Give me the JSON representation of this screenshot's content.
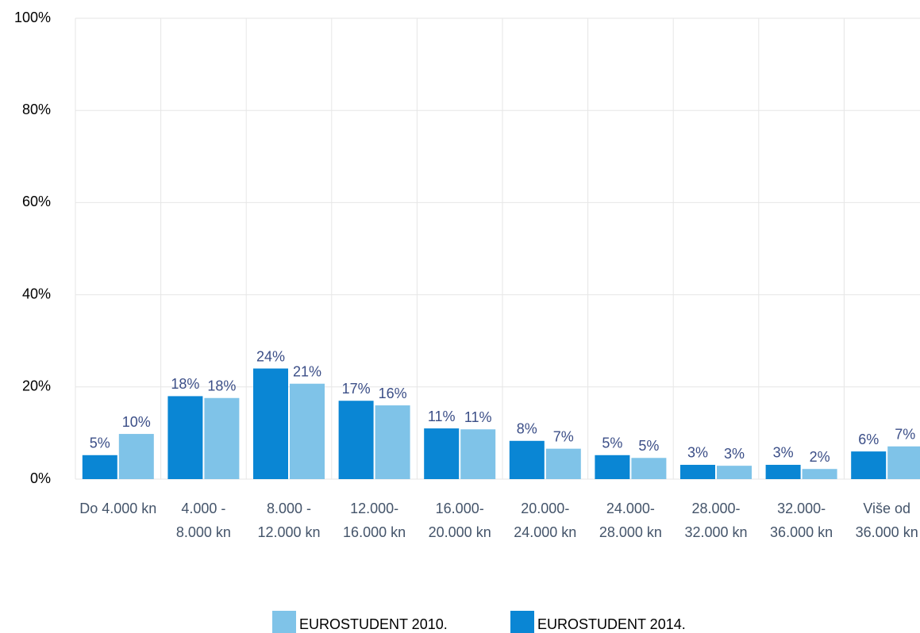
{
  "chart_data": {
    "type": "bar",
    "categories": [
      "Do 4.000 kn",
      "4.000 - 8.000 kn",
      "8.000 - 12.000 kn",
      "12.000-16.000 kn",
      "16.000-20.000 kn",
      "20.000-24.000 kn",
      "24.000-28.000 kn",
      "28.000-32.000 kn",
      "32.000-36.000 kn",
      "Više od 36.000 kn"
    ],
    "series": [
      {
        "name": "EUROSTUDENT 2010.",
        "color": "#7fc3e8",
        "values": [
          9.8,
          17.6,
          20.7,
          16.0,
          10.8,
          6.6,
          4.6,
          2.9,
          2.2,
          7.1
        ],
        "value_labels": [
          "10%",
          "18%",
          "21%",
          "16%",
          "11%",
          "7%",
          "5%",
          "3%",
          "2%",
          "7%"
        ]
      },
      {
        "name": "EUROSTUDENT 2014.",
        "color": "#0a86d4",
        "values": [
          5.2,
          18,
          24,
          17,
          11,
          8.3,
          5.2,
          3.1,
          3.1,
          6
        ],
        "value_labels": [
          "5%",
          "18%",
          "24%",
          "17%",
          "11%",
          "8%",
          "5%",
          "3%",
          "3%",
          "6%"
        ]
      }
    ],
    "ylim": [
      0,
      100
    ],
    "yticks": [
      {
        "value": 0,
        "label": "0%"
      },
      {
        "value": 20,
        "label": "20%"
      },
      {
        "value": 40,
        "label": "40%"
      },
      {
        "value": 60,
        "label": "60%"
      },
      {
        "value": 80,
        "label": "80%"
      },
      {
        "value": 100,
        "label": "100%"
      }
    ],
    "grid": true,
    "legend": "bottom"
  }
}
